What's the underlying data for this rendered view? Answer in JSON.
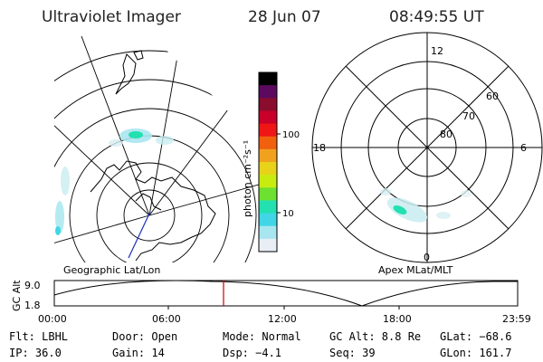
{
  "header": {
    "title": "Ultraviolet Imager",
    "date": "28 Jun 07",
    "time": "08:49:55 UT"
  },
  "left_map": {
    "caption": "Geographic Lat/Lon"
  },
  "right_map": {
    "caption": "Apex MLat/MLT",
    "mlt_labels": [
      "12",
      "18",
      "6",
      "0"
    ],
    "lat_labels": [
      "60",
      "70",
      "80"
    ]
  },
  "colorbar": {
    "unit_label": "photon cm⁻²s⁻¹",
    "tick_labels": [
      "100",
      "10"
    ],
    "colors": [
      "#000000",
      "#5b0a5f",
      "#8a0d2d",
      "#c8002a",
      "#f01616",
      "#f0600d",
      "#f0a21e",
      "#e8d21a",
      "#c8ec10",
      "#6ee030",
      "#22e0b0",
      "#40d6e6",
      "#a8e6ef",
      "#e8eef4"
    ]
  },
  "altitude_plot": {
    "ylabel": "GC Alt",
    "ymax_label": "9.0",
    "ymin_label": "1.8",
    "x_ticks": [
      "00:00",
      "06:00",
      "12:00",
      "18:00",
      "23:59"
    ],
    "marker_color": "#cc0000"
  },
  "status": {
    "filter": "Flt: LBHL",
    "door": "Door: Open",
    "mode": "Mode: Normal",
    "gc_alt": "GC Alt: 8.8 Re",
    "glat": "GLat: −68.6",
    "ip": "IP: 36.0",
    "gain": "Gain: 14",
    "dsp": "Dsp:   −4.1",
    "seq": "Seq: 39",
    "glon": "GLon: 161.7"
  }
}
